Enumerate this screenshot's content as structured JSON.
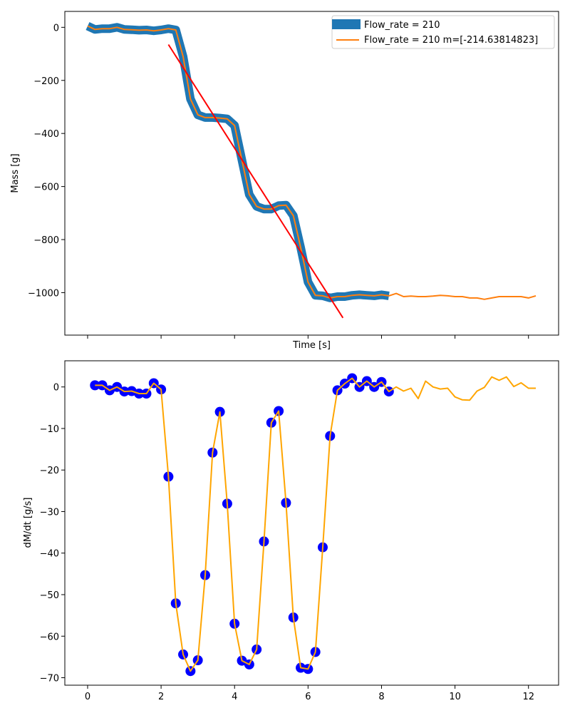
{
  "chart_data": [
    {
      "type": "line",
      "xlabel": "Time [s]",
      "ylabel": "Mass [g]",
      "xlim": [
        -0.62,
        12.82
      ],
      "ylim": [
        -1160,
        60
      ],
      "x_ticks": [
        0,
        2,
        4,
        6,
        8,
        10,
        12
      ],
      "x_tick_labels_visible": false,
      "y_ticks": [
        0,
        -200,
        -400,
        -600,
        -800,
        -1000
      ],
      "y_tick_labels": [
        "0",
        "−200",
        "−400",
        "−600",
        "−800",
        "−1000"
      ],
      "legend_position": "top-right",
      "series": [
        {
          "name": "Flow_rate = 210",
          "color": "#1f77b4",
          "style": "thick-line",
          "x": [
            0.0,
            0.2,
            0.4,
            0.6,
            0.8,
            1.0,
            1.2,
            1.4,
            1.6,
            1.8,
            2.0,
            2.2,
            2.4,
            2.6,
            2.8,
            3.0,
            3.2,
            3.4,
            3.6,
            3.8,
            4.0,
            4.2,
            4.4,
            4.6,
            4.8,
            5.0,
            5.2,
            5.4,
            5.6,
            5.8,
            6.0,
            6.2,
            6.4,
            6.6,
            6.8,
            7.0,
            7.2,
            7.4,
            7.6,
            7.8,
            8.0,
            8.2
          ],
          "values": [
            5,
            -8,
            -5,
            -5,
            0,
            -8,
            -9,
            -11,
            -10,
            -13,
            -10,
            -5,
            -10,
            -110,
            -270,
            -330,
            -340,
            -340,
            -342,
            -345,
            -370,
            -500,
            -630,
            -675,
            -685,
            -685,
            -672,
            -670,
            -710,
            -830,
            -960,
            -1010,
            -1012,
            -1020,
            -1015,
            -1015,
            -1010,
            -1008,
            -1010,
            -1012,
            -1008,
            -1012
          ]
        },
        {
          "name": "Flow_rate = 210 m=[-214.63814823]",
          "color": "#ff7f0e",
          "style": "line",
          "x": [
            0.0,
            0.2,
            0.4,
            0.6,
            0.8,
            1.0,
            1.2,
            1.4,
            1.6,
            1.8,
            2.0,
            2.2,
            2.4,
            2.6,
            2.8,
            3.0,
            3.2,
            3.4,
            3.6,
            3.8,
            4.0,
            4.2,
            4.4,
            4.6,
            4.8,
            5.0,
            5.2,
            5.4,
            5.6,
            5.8,
            6.0,
            6.2,
            6.4,
            6.6,
            6.8,
            7.0,
            7.2,
            7.4,
            7.6,
            7.8,
            8.0,
            8.2,
            8.4,
            8.6,
            8.8,
            9.0,
            9.2,
            9.4,
            9.6,
            9.8,
            10.0,
            10.2,
            10.4,
            10.6,
            10.8,
            11.0,
            11.2,
            11.4,
            11.6,
            11.8,
            12.0,
            12.2
          ],
          "values": [
            5,
            -8,
            -5,
            -5,
            0,
            -8,
            -9,
            -11,
            -10,
            -13,
            -10,
            -5,
            -10,
            -110,
            -270,
            -330,
            -340,
            -340,
            -342,
            -345,
            -370,
            -500,
            -630,
            -675,
            -685,
            -685,
            -672,
            -670,
            -710,
            -830,
            -960,
            -1010,
            -1012,
            -1020,
            -1015,
            -1015,
            -1010,
            -1008,
            -1010,
            -1012,
            -1008,
            -1012,
            -1003,
            -1015,
            -1013,
            -1015,
            -1015,
            -1013,
            -1010,
            -1012,
            -1015,
            -1015,
            -1020,
            -1020,
            -1025,
            -1020,
            -1015,
            -1015,
            -1015,
            -1015,
            -1020,
            -1012
          ]
        },
        {
          "name": "",
          "color": "#ff0000",
          "style": "fit-line",
          "x": [
            2.2,
            6.95
          ],
          "values": [
            -65,
            -1095
          ]
        }
      ]
    },
    {
      "type": "line",
      "xlabel": "",
      "ylabel": "dM/dt [g/s]",
      "xlim": [
        -0.62,
        12.82
      ],
      "ylim": [
        -71.8,
        6.3
      ],
      "x_ticks": [
        0,
        2,
        4,
        6,
        8,
        10,
        12
      ],
      "x_tick_labels": [
        "0",
        "2",
        "4",
        "6",
        "8",
        "10",
        "12"
      ],
      "y_ticks": [
        0,
        -10,
        -20,
        -30,
        -40,
        -50,
        -60,
        -70
      ],
      "y_tick_labels": [
        "0",
        "−10",
        "−20",
        "−30",
        "−40",
        "−50",
        "−60",
        "−70"
      ],
      "series": [
        {
          "name": "",
          "color": "#0000ff",
          "style": "scatter",
          "x": [
            0.2,
            0.4,
            0.6,
            0.8,
            1.0,
            1.2,
            1.4,
            1.6,
            1.8,
            2.0,
            2.2,
            2.4,
            2.6,
            2.8,
            3.0,
            3.2,
            3.4,
            3.6,
            3.8,
            4.0,
            4.2,
            4.4,
            4.6,
            4.8,
            5.0,
            5.2,
            5.4,
            5.6,
            5.8,
            6.0,
            6.2,
            6.4,
            6.6,
            6.8,
            7.0,
            7.2,
            7.4,
            7.6,
            7.8,
            8.0,
            8.2
          ],
          "values": [
            0.4,
            0.4,
            -0.8,
            0.0,
            -1.1,
            -1.0,
            -1.6,
            -1.6,
            0.9,
            -0.6,
            -21.6,
            -52.1,
            -64.4,
            -68.4,
            -65.8,
            -45.3,
            -15.8,
            -6.0,
            -28.1,
            -57.0,
            -65.9,
            -66.8,
            -63.2,
            -37.2,
            -8.6,
            -5.8,
            -27.9,
            -55.5,
            -67.6,
            -67.9,
            -63.8,
            -38.6,
            -11.8,
            -0.8,
            0.8,
            2.1,
            0.0,
            1.4,
            0.0,
            1.2,
            -1.1
          ]
        },
        {
          "name": "",
          "color": "#ffa500",
          "style": "line",
          "x": [
            0.2,
            0.4,
            0.6,
            0.8,
            1.0,
            1.2,
            1.4,
            1.6,
            1.8,
            2.0,
            2.2,
            2.4,
            2.6,
            2.8,
            3.0,
            3.2,
            3.4,
            3.6,
            3.8,
            4.0,
            4.2,
            4.4,
            4.6,
            4.8,
            5.0,
            5.2,
            5.4,
            5.6,
            5.8,
            6.0,
            6.2,
            6.4,
            6.6,
            6.8,
            7.0,
            7.2,
            7.4,
            7.6,
            7.8,
            8.0,
            8.2,
            8.4,
            8.6,
            8.8,
            9.0,
            9.2,
            9.4,
            9.6,
            9.8,
            10.0,
            10.2,
            10.4,
            10.6,
            10.8,
            11.0,
            11.2,
            11.4,
            11.6,
            11.8,
            12.0,
            12.2
          ],
          "values": [
            0.4,
            0.4,
            -0.8,
            0.0,
            -1.1,
            -1.0,
            -1.6,
            -1.6,
            0.9,
            -0.6,
            -21.6,
            -52.1,
            -64.4,
            -68.4,
            -65.8,
            -45.3,
            -15.8,
            -6.0,
            -28.1,
            -57.0,
            -65.9,
            -66.8,
            -63.2,
            -37.2,
            -8.6,
            -5.8,
            -27.9,
            -55.5,
            -67.6,
            -67.9,
            -63.8,
            -38.6,
            -11.8,
            -0.8,
            0.8,
            2.1,
            0.0,
            1.4,
            0.0,
            1.2,
            -1.1,
            0.0,
            -1.0,
            -0.3,
            -2.8,
            1.4,
            0.0,
            -0.5,
            -0.3,
            -2.4,
            -3.1,
            -3.2,
            -1.0,
            -0.1,
            2.4,
            1.6,
            2.4,
            0.1,
            1.0,
            -0.3,
            -0.3
          ]
        }
      ]
    }
  ]
}
